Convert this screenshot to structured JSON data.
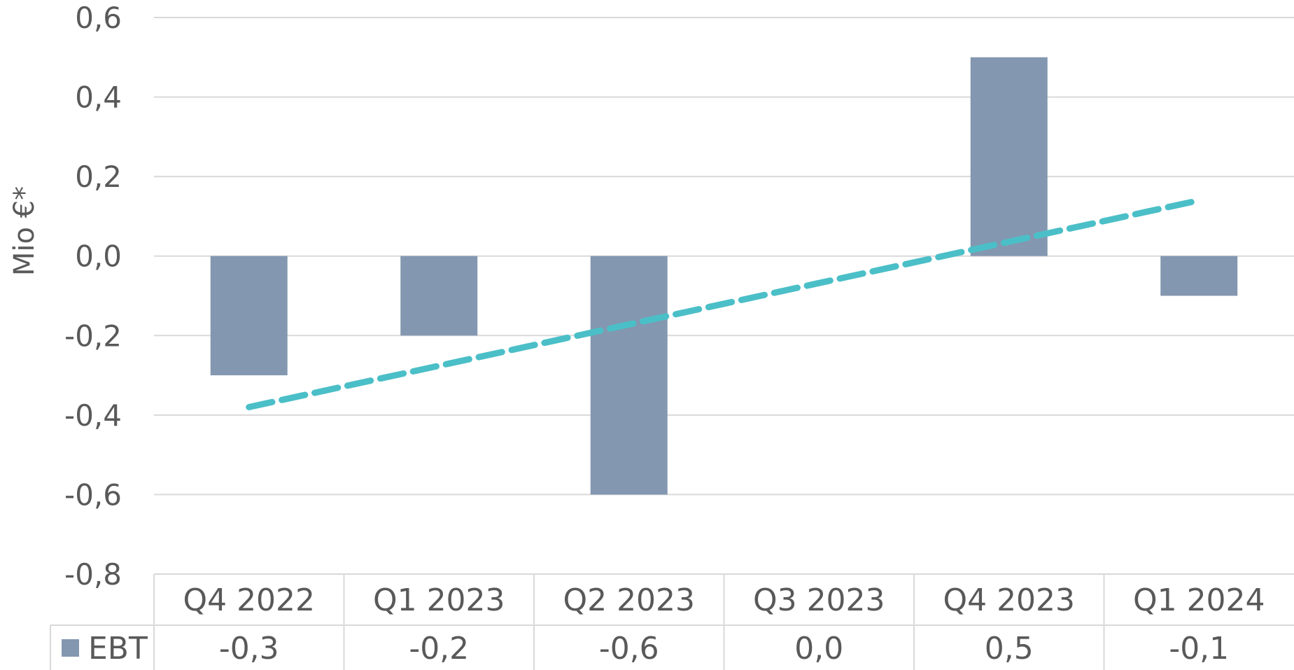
{
  "chart_data": {
    "type": "bar",
    "ylabel": "Mio €*",
    "ylim": [
      -0.8,
      0.6
    ],
    "y_ticks": [
      "0,6",
      "0,4",
      "0,2",
      "0,0",
      "-0,2",
      "-0,4",
      "-0,6",
      "-0,8"
    ],
    "categories": [
      "Q4 2022",
      "Q1 2023",
      "Q2 2023",
      "Q3 2023",
      "Q4 2023",
      "Q1 2024"
    ],
    "series": [
      {
        "name": "EBT",
        "color": "#8497b0",
        "values": [
          -0.3,
          -0.2,
          -0.6,
          0.0,
          0.5,
          -0.1
        ],
        "value_labels": [
          "-0,3",
          "-0,2",
          "-0,6",
          "0,0",
          "0,5",
          "-0,1"
        ]
      }
    ],
    "trendline": {
      "type": "linear",
      "style": "dashed",
      "color": "#4bbfc7",
      "start_value": -0.38,
      "end_value": 0.14
    },
    "grid": true,
    "legend": "data-table",
    "data_table": true
  }
}
